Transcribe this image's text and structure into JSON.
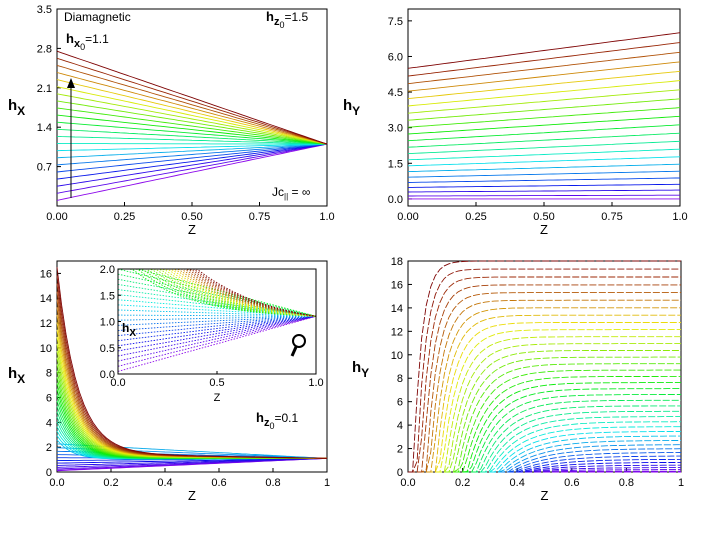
{
  "chart_data": [
    {
      "id": "top-left",
      "type": "line",
      "ylabel": "h",
      "ylabel_sub": "X",
      "xlabel": "Z",
      "xlim": [
        0,
        1
      ],
      "ylim": [
        0,
        3.5
      ],
      "xticks": [
        "0.00",
        "0.25",
        "0.50",
        "0.75",
        "1.0"
      ],
      "yticks": [
        "0.7",
        "1.4",
        "2.1",
        "2.8",
        "3.5"
      ],
      "annotations": {
        "mode": "Diamagnetic",
        "hz0_main": "h",
        "hz0_sub": "z",
        "hz0_subsub": "0",
        "hz0_value": "=1.5",
        "hx0_main": "h",
        "hx0_sub": "x",
        "hx0_subsub": "0",
        "hx0_value": "=1.1",
        "jc_main": "Jc",
        "jc_sub": "||",
        "jc_value": " = ∞"
      },
      "series": {
        "count": 22,
        "start_range": [
          0.1,
          2.75
        ],
        "end_value": 1.1,
        "shape": "linear"
      }
    },
    {
      "id": "top-right",
      "type": "line",
      "ylabel": "h",
      "ylabel_sub": "Y",
      "xlabel": "Z",
      "xlim": [
        0,
        1
      ],
      "ylim": [
        -0.3,
        8.0
      ],
      "xticks": [
        "0.00",
        "0.25",
        "0.50",
        "0.75",
        "1.0"
      ],
      "yticks": [
        "0.0",
        "1.5",
        "3.0",
        "4.5",
        "6.0",
        "7.5"
      ],
      "series": {
        "count": 22,
        "start_range": [
          0.0,
          5.5
        ],
        "end_range": [
          0.0,
          7.0
        ],
        "shape": "linear"
      }
    },
    {
      "id": "bottom-left",
      "type": "line",
      "ylabel": "h",
      "ylabel_sub": "X",
      "xlabel": "Z",
      "xlim": [
        0,
        1
      ],
      "ylim": [
        0,
        17
      ],
      "xticks": [
        "0.0",
        "0.2",
        "0.4",
        "0.6",
        "0.8",
        "1"
      ],
      "yticks": [
        "0",
        "2",
        "4",
        "6",
        "8",
        "10",
        "12",
        "14",
        "16"
      ],
      "annotations": {
        "hz0_main": "h",
        "hz0_sub": "z",
        "hz0_subsub": "0",
        "hz0_value": "=0.1"
      },
      "series": {
        "count": 40,
        "start_range": [
          0.1,
          16.5
        ],
        "end_value": 1.1,
        "shape": "decay"
      },
      "inset": {
        "xlabel": "Z",
        "ylabel": "h",
        "ylabel_sub": "X",
        "xlim": [
          0,
          1
        ],
        "ylim": [
          0,
          2
        ],
        "xticks": [
          "0.0",
          "0.5",
          "1.0"
        ],
        "yticks": [
          "0.0",
          "0.5",
          "1.0",
          "1.5",
          "2.0"
        ],
        "icon": "magnifier-icon"
      }
    },
    {
      "id": "bottom-right",
      "type": "line",
      "ylabel": "h",
      "ylabel_sub": "Y",
      "xlabel": "Z",
      "xlim": [
        0,
        1
      ],
      "ylim": [
        0,
        18
      ],
      "xticks": [
        "0.0",
        "0.2",
        "0.4",
        "0.6",
        "0.8",
        "1"
      ],
      "yticks": [
        "0",
        "2",
        "4",
        "6",
        "8",
        "10",
        "12",
        "14",
        "16",
        "18"
      ],
      "series": {
        "count": 40,
        "end_range": [
          0.0,
          18.0
        ],
        "shape": "rise"
      }
    }
  ]
}
